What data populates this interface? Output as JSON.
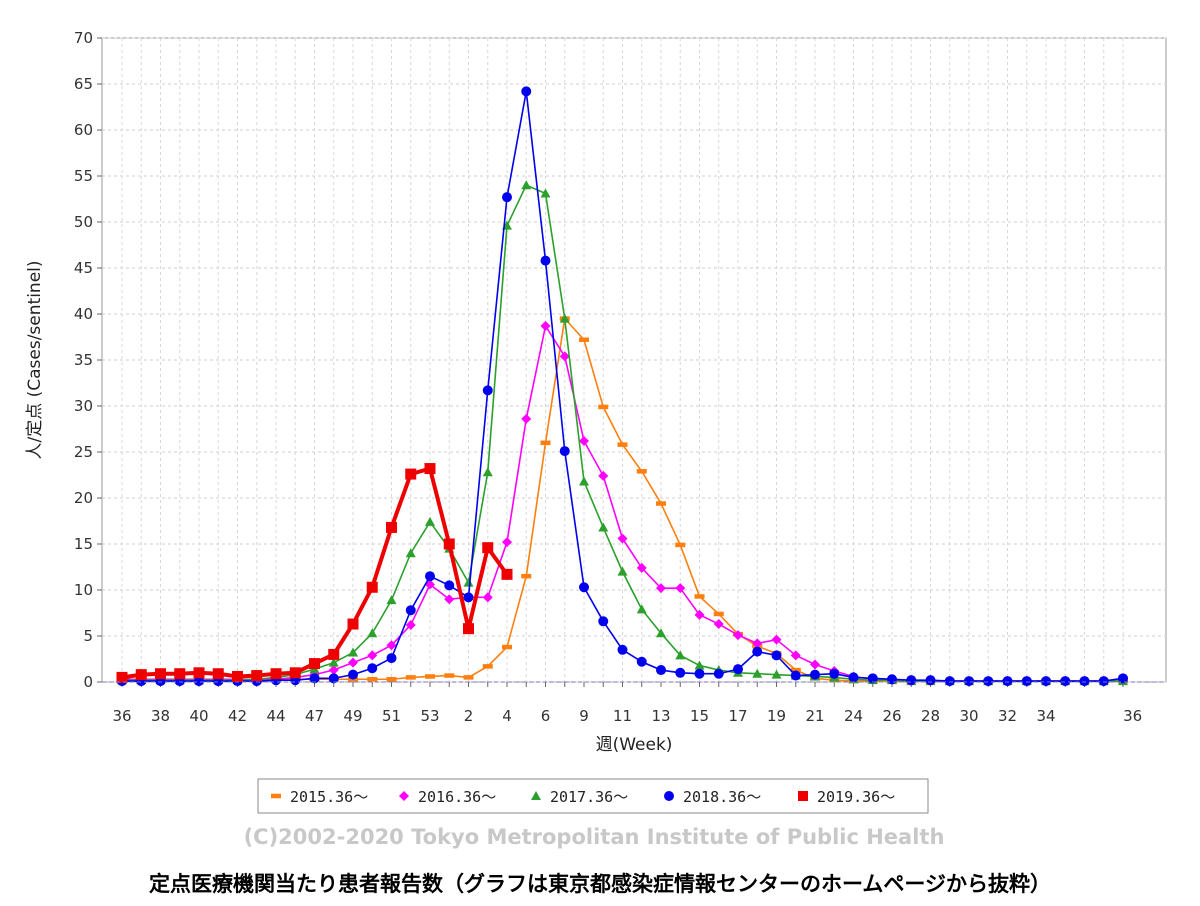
{
  "chart_data": {
    "type": "line",
    "ylabel": "人/定点 (Cases/sentinel)",
    "xlabel": "週(Week)",
    "ylim": [
      0,
      70
    ],
    "yticks": [
      0,
      5,
      10,
      15,
      20,
      25,
      30,
      35,
      40,
      45,
      50,
      55,
      60,
      65,
      70
    ],
    "x_tick_labels": [
      "36",
      "38",
      "40",
      "42",
      "44",
      "47",
      "49",
      "51",
      "53",
      "2",
      "4",
      "6",
      "9",
      "11",
      "13",
      "15",
      "17",
      "19",
      "21",
      "24",
      "26",
      "28",
      "30",
      "32",
      "34",
      "36"
    ],
    "x_tick_indices": [
      0,
      2,
      4,
      6,
      8,
      10,
      12,
      14,
      16,
      18,
      20,
      22,
      24,
      26,
      28,
      30,
      32,
      34,
      36,
      38,
      40,
      42,
      44,
      46,
      48,
      50
    ],
    "grid": true,
    "legend_position": "bottom",
    "series": [
      {
        "name": "2015.36～",
        "color": "#ff7f0e",
        "marker": "bar",
        "values": [
          0.3,
          0.3,
          0.3,
          0.3,
          0.3,
          0.3,
          0.3,
          0.3,
          0.3,
          0.3,
          0.3,
          0.3,
          0.3,
          0.3,
          0.3,
          0.5,
          0.6,
          0.7,
          0.5,
          1.7,
          3.8,
          11.5,
          26,
          39.5,
          37.2,
          29.9,
          25.8,
          22.9,
          19.4,
          14.9,
          9.3,
          7.4,
          5.2,
          3.9,
          3.1,
          1.3,
          0.4,
          0.2,
          0.1,
          0.1,
          0.1,
          0.1,
          0.1,
          0.1,
          0.1,
          0.1,
          0.1,
          0.1,
          0.1,
          0.1,
          0.1,
          0.1,
          0.1
        ]
      },
      {
        "name": "2016.36～",
        "color": "#ff00ff",
        "marker": "diamond",
        "values": [
          0.3,
          0.3,
          0.3,
          0.3,
          0.3,
          0.3,
          0.3,
          0.3,
          0.3,
          0.5,
          0.8,
          1.3,
          2.1,
          2.9,
          4.0,
          6.2,
          10.6,
          9.0,
          9.2,
          9.2,
          15.2,
          28.6,
          38.7,
          35.4,
          26.2,
          22.4,
          15.6,
          12.4,
          10.2,
          10.2,
          7.3,
          6.3,
          5.1,
          4.2,
          4.6,
          2.9,
          1.9,
          1.2,
          0.6,
          0.3,
          0.2,
          0.1,
          0.1,
          0.1,
          0.1,
          0.1,
          0.1,
          0.1,
          0.1,
          0.1,
          0.1,
          0.1,
          0.1
        ]
      },
      {
        "name": "2017.36～",
        "color": "#2ca02c",
        "marker": "triangle",
        "values": [
          0.2,
          0.2,
          0.2,
          0.2,
          0.2,
          0.2,
          0.2,
          0.3,
          0.5,
          0.8,
          1.4,
          2.1,
          3.2,
          5.3,
          8.9,
          14.0,
          17.4,
          14.5,
          10.8,
          22.8,
          49.6,
          54.0,
          53.1,
          39.5,
          21.8,
          16.8,
          12.0,
          7.9,
          5.3,
          2.9,
          1.8,
          1.3,
          1.0,
          0.9,
          0.8,
          0.7,
          0.6,
          0.5,
          0.3,
          0.2,
          0.2,
          0.1,
          0.1,
          0.1,
          0.1,
          0.1,
          0.1,
          0.1,
          0.1,
          0.1,
          0.1,
          0.1,
          0.1
        ]
      },
      {
        "name": "2018.36～",
        "color": "#0000ee",
        "marker": "circle",
        "values": [
          0.1,
          0.1,
          0.1,
          0.1,
          0.1,
          0.1,
          0.1,
          0.1,
          0.2,
          0.2,
          0.4,
          0.4,
          0.8,
          1.5,
          2.6,
          7.8,
          11.5,
          10.5,
          9.2,
          31.7,
          52.7,
          64.2,
          45.8,
          25.1,
          10.3,
          6.6,
          3.5,
          2.2,
          1.3,
          1.0,
          0.9,
          0.9,
          1.4,
          3.3,
          2.9,
          0.7,
          0.8,
          0.9,
          0.5,
          0.4,
          0.3,
          0.2,
          0.2,
          0.1,
          0.1,
          0.1,
          0.1,
          0.1,
          0.1,
          0.1,
          0.1,
          0.1,
          0.4
        ]
      },
      {
        "name": "2019.36～",
        "color": "#ee0000",
        "marker": "square",
        "values": [
          0.5,
          0.8,
          0.9,
          0.9,
          1.0,
          0.9,
          0.6,
          0.7,
          0.9,
          1.0,
          2.0,
          3.0,
          6.3,
          10.3,
          16.8,
          22.6,
          23.2,
          15.0,
          5.8,
          14.6,
          11.7
        ]
      }
    ]
  },
  "credit": "(C)2002-2020 Tokyo Metropolitan Institute of Public Health",
  "caption": "定点医療機関当たり患者報告数（グラフは東京都感染症情報センターのホームページから抜粋）"
}
